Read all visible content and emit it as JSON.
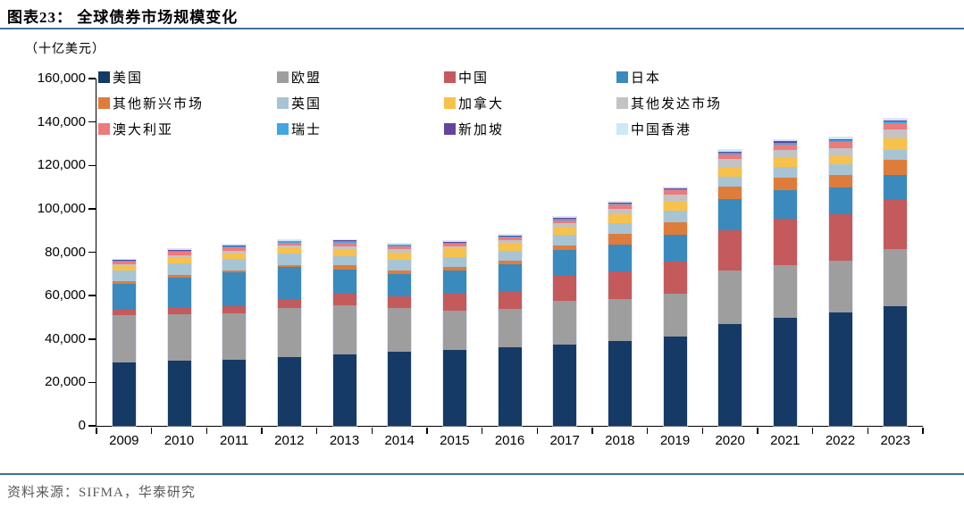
{
  "header": {
    "title": "图表23：  全球债券市场规模变化",
    "unit": "（十亿美元）"
  },
  "footer": {
    "source": "资料来源：SIFMA，华泰研究"
  },
  "colors": {
    "rule_blue": "#41719c",
    "axis": "#000000",
    "footer_text": "#595959"
  },
  "chart_data": {
    "type": "bar",
    "stacked": true,
    "title": "全球债券市场规模变化",
    "ylabel": "十亿美元",
    "xlabel": "",
    "grid": false,
    "legend_position": "top-left-inside",
    "ylim": [
      0,
      160000
    ],
    "ytick_step": 20000,
    "yticks": [
      "0",
      "20,000",
      "40,000",
      "60,000",
      "80,000",
      "100,000",
      "120,000",
      "140,000",
      "160,000"
    ],
    "categories": [
      "2009",
      "2010",
      "2011",
      "2012",
      "2013",
      "2014",
      "2015",
      "2016",
      "2017",
      "2018",
      "2019",
      "2020",
      "2021",
      "2022",
      "2023"
    ],
    "series": [
      {
        "id": "us",
        "name": "美国",
        "color": "#153a66",
        "values": [
          29200,
          29900,
          30600,
          31700,
          33000,
          34000,
          35100,
          36200,
          37400,
          39200,
          41000,
          46800,
          49800,
          52300,
          55300
        ]
      },
      {
        "id": "eu",
        "name": "欧盟",
        "color": "#9e9e9e",
        "values": [
          22000,
          21400,
          21300,
          22600,
          22600,
          20300,
          17900,
          17700,
          20100,
          19200,
          19800,
          24700,
          24100,
          23600,
          26100
        ]
      },
      {
        "id": "china",
        "name": "中国",
        "color": "#c45a5b",
        "values": [
          2200,
          3000,
          3400,
          4000,
          5100,
          5500,
          7800,
          8200,
          11800,
          12800,
          14800,
          18500,
          21600,
          21600,
          22600
        ]
      },
      {
        "id": "japan",
        "name": "日本",
        "color": "#3a8abd",
        "values": [
          11900,
          14000,
          15500,
          14800,
          11400,
          10300,
          10700,
          12400,
          11800,
          12300,
          12300,
          14400,
          13300,
          12400,
          11600
        ]
      },
      {
        "id": "em-others",
        "name": "其他新兴市场",
        "color": "#de7d3b",
        "values": [
          1200,
          1200,
          700,
          1100,
          1800,
          1600,
          1600,
          1700,
          2000,
          4800,
          5800,
          5800,
          5600,
          5500,
          6900
        ]
      },
      {
        "id": "uk",
        "name": "英国",
        "color": "#a7c4d4",
        "values": [
          4900,
          5400,
          5500,
          5200,
          4400,
          5000,
          4500,
          4600,
          5100,
          5000,
          5500,
          4700,
          4800,
          5200,
          4800
        ]
      },
      {
        "id": "canada",
        "name": "加拿大",
        "color": "#f7c24b",
        "values": [
          2100,
          2300,
          2500,
          2800,
          3000,
          3300,
          4100,
          3700,
          3500,
          4200,
          4100,
          3900,
          4100,
          3700,
          5200
        ]
      },
      {
        "id": "dev-others",
        "name": "其他发达市场",
        "color": "#c3c3c3",
        "values": [
          1000,
          1400,
          1200,
          1100,
          1600,
          1400,
          1100,
          1200,
          1500,
          2600,
          3200,
          4100,
          3700,
          3700,
          4100
        ]
      },
      {
        "id": "australia",
        "name": "澳大利亚",
        "color": "#ee7a7b",
        "values": [
          1300,
          1500,
          1500,
          1200,
          1600,
          1500,
          1200,
          1200,
          1600,
          1800,
          2000,
          2300,
          2700,
          2700,
          2800
        ]
      },
      {
        "id": "switzerland",
        "name": "瑞士",
        "color": "#3fa6e3",
        "values": [
          500,
          600,
          600,
          500,
          600,
          500,
          500,
          500,
          600,
          600,
          600,
          800,
          800,
          900,
          800
        ]
      },
      {
        "id": "singapore",
        "name": "新加坡",
        "color": "#64449d",
        "values": [
          200,
          300,
          300,
          300,
          300,
          300,
          300,
          300,
          400,
          400,
          400,
          500,
          600,
          600,
          600
        ]
      },
      {
        "id": "hongkong",
        "name": "中国香港",
        "color": "#cde8f8",
        "values": [
          200,
          300,
          300,
          300,
          300,
          300,
          300,
          300,
          400,
          400,
          400,
          600,
          600,
          600,
          600
        ]
      }
    ]
  }
}
